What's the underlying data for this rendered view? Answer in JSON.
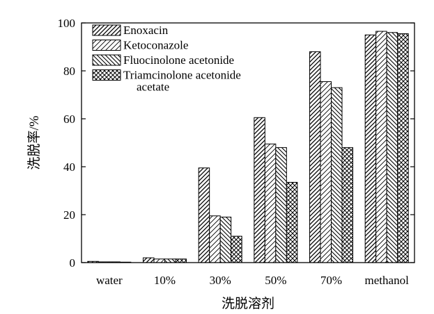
{
  "chart_data": {
    "type": "bar",
    "categories": [
      "water",
      "10%",
      "30%",
      "50%",
      "70%",
      "methanol"
    ],
    "series": [
      {
        "name": "Enoxacin",
        "values": [
          0.5,
          2.0,
          39.5,
          60.5,
          88.0,
          95.0
        ]
      },
      {
        "name": "Ketoconazole",
        "values": [
          0.3,
          1.5,
          19.5,
          49.5,
          75.5,
          96.5
        ]
      },
      {
        "name": "Fluocinolone acetonide",
        "values": [
          0.3,
          1.5,
          19.0,
          48.0,
          73.0,
          96.0
        ]
      },
      {
        "name": "Triamcinolone acetonide acetate",
        "values": [
          0.2,
          1.5,
          11.0,
          33.5,
          48.0,
          95.5
        ]
      }
    ],
    "legend_lines": [
      [
        "Enoxacin"
      ],
      [
        "Ketoconazole"
      ],
      [
        "Fluocinolone acetonide"
      ],
      [
        "Triamcinolone acetonide",
        "acetate"
      ]
    ],
    "xlabel": "洗脱溶剂",
    "ylabel": "洗脱率/%",
    "ylim": [
      0,
      100
    ],
    "yticks": [
      0,
      20,
      40,
      60,
      80,
      100
    ],
    "legend_position": "top-left",
    "grid": false
  }
}
